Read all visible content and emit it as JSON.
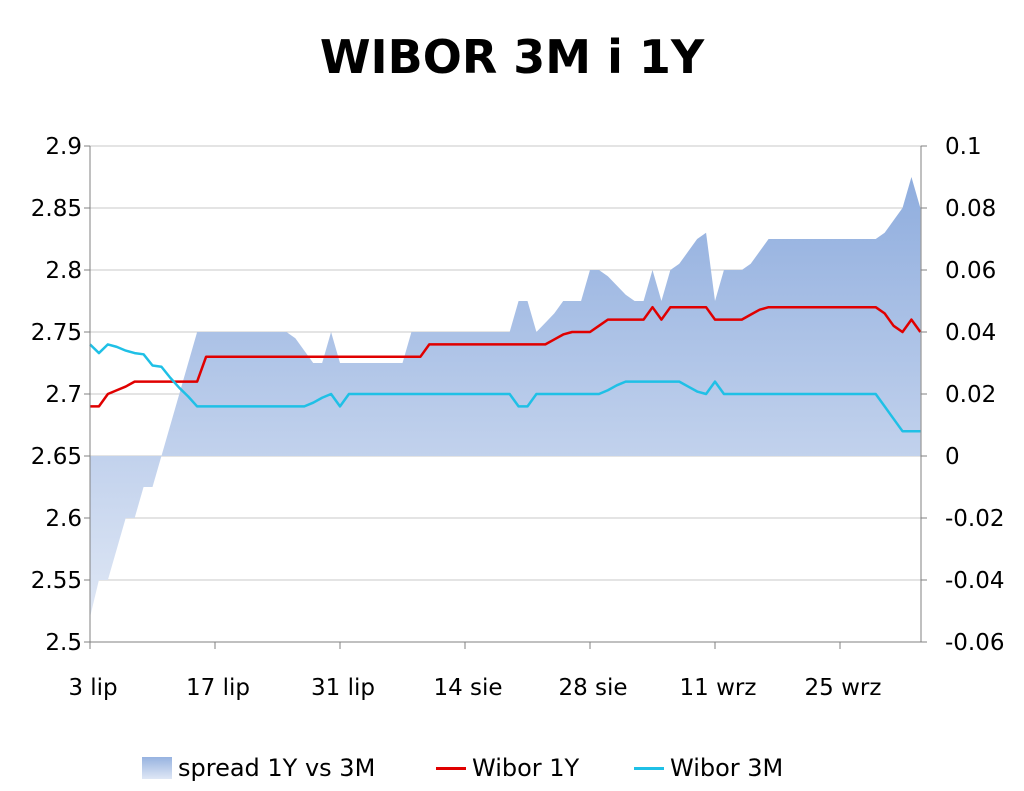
{
  "chart_data": {
    "type": "line",
    "title": "WIBOR 3M i 1Y",
    "x_tick_labels": [
      "3 lip",
      "17 lip",
      "31 lip",
      "14 sie",
      "28 sie",
      "11 wrz",
      "25 wrz"
    ],
    "y_left": {
      "ylim": [
        2.5,
        2.9
      ],
      "ticks": [
        "2.9",
        "2.85",
        "2.8",
        "2.75",
        "2.7",
        "2.65",
        "2.6",
        "2.55",
        "2.5"
      ]
    },
    "y_right": {
      "ylim": [
        -0.06,
        0.1
      ],
      "ticks": [
        "0.1",
        "0.08",
        "0.06",
        "0.04",
        "0.02",
        "0",
        "-0.02",
        "-0.04",
        "-0.06"
      ]
    },
    "grid": true,
    "legend_position": "bottom",
    "x_days": [
      0,
      1,
      2,
      3,
      4,
      5,
      6,
      7,
      8,
      9,
      10,
      11,
      12,
      13,
      14,
      15,
      16,
      17,
      18,
      19,
      20,
      21,
      22,
      23,
      24,
      25,
      26,
      27,
      28,
      29,
      30,
      31,
      32,
      33,
      34,
      35,
      36,
      37,
      38,
      39,
      40,
      41,
      42,
      43,
      44,
      45,
      46,
      47,
      48,
      49,
      50,
      51,
      52,
      53,
      54,
      55,
      56,
      57,
      58,
      59,
      60,
      61,
      62,
      63,
      64,
      65,
      66,
      67,
      68,
      69,
      70,
      71,
      72,
      73,
      74,
      75,
      76,
      77,
      78,
      79,
      80,
      81,
      82,
      83,
      84,
      85,
      86,
      87,
      88,
      89,
      90,
      91,
      92,
      93
    ],
    "series": [
      {
        "name": "spread 1Y vs 3M",
        "type": "area",
        "axis": "right",
        "color": "#97b3e0",
        "values": [
          -0.052,
          -0.04,
          -0.04,
          -0.03,
          -0.02,
          -0.02,
          -0.01,
          -0.01,
          0.0,
          0.01,
          0.02,
          0.03,
          0.04,
          0.04,
          0.04,
          0.04,
          0.04,
          0.04,
          0.04,
          0.04,
          0.04,
          0.04,
          0.04,
          0.038,
          0.034,
          0.03,
          0.03,
          0.04,
          0.03,
          0.03,
          0.03,
          0.03,
          0.03,
          0.03,
          0.03,
          0.03,
          0.04,
          0.04,
          0.04,
          0.04,
          0.04,
          0.04,
          0.04,
          0.04,
          0.04,
          0.04,
          0.04,
          0.04,
          0.05,
          0.05,
          0.04,
          0.043,
          0.046,
          0.05,
          0.05,
          0.05,
          0.06,
          0.06,
          0.058,
          0.055,
          0.052,
          0.05,
          0.05,
          0.06,
          0.05,
          0.06,
          0.062,
          0.066,
          0.07,
          0.072,
          0.05,
          0.06,
          0.06,
          0.06,
          0.062,
          0.066,
          0.07,
          0.07,
          0.07,
          0.07,
          0.07,
          0.07,
          0.07,
          0.07,
          0.07,
          0.07,
          0.07,
          0.07,
          0.07,
          0.072,
          0.076,
          0.08,
          0.09,
          0.08
        ]
      },
      {
        "name": "Wibor 1Y",
        "type": "line",
        "axis": "left",
        "color": "#e00000",
        "values": [
          2.69,
          2.69,
          2.7,
          2.703,
          2.706,
          2.71,
          2.71,
          2.71,
          2.71,
          2.71,
          2.71,
          2.71,
          2.71,
          2.73,
          2.73,
          2.73,
          2.73,
          2.73,
          2.73,
          2.73,
          2.73,
          2.73,
          2.73,
          2.73,
          2.73,
          2.73,
          2.73,
          2.73,
          2.73,
          2.73,
          2.73,
          2.73,
          2.73,
          2.73,
          2.73,
          2.73,
          2.73,
          2.73,
          2.74,
          2.74,
          2.74,
          2.74,
          2.74,
          2.74,
          2.74,
          2.74,
          2.74,
          2.74,
          2.74,
          2.74,
          2.74,
          2.74,
          2.744,
          2.748,
          2.75,
          2.75,
          2.75,
          2.755,
          2.76,
          2.76,
          2.76,
          2.76,
          2.76,
          2.77,
          2.76,
          2.77,
          2.77,
          2.77,
          2.77,
          2.77,
          2.76,
          2.76,
          2.76,
          2.76,
          2.764,
          2.768,
          2.77,
          2.77,
          2.77,
          2.77,
          2.77,
          2.77,
          2.77,
          2.77,
          2.77,
          2.77,
          2.77,
          2.77,
          2.77,
          2.765,
          2.755,
          2.75,
          2.76,
          2.75
        ]
      },
      {
        "name": "Wibor 3M",
        "type": "line",
        "axis": "left",
        "color": "#1fc0e6",
        "values": [
          2.74,
          2.733,
          2.74,
          2.738,
          2.735,
          2.733,
          2.732,
          2.723,
          2.722,
          2.713,
          2.705,
          2.698,
          2.69,
          2.69,
          2.69,
          2.69,
          2.69,
          2.69,
          2.69,
          2.69,
          2.69,
          2.69,
          2.69,
          2.69,
          2.69,
          2.693,
          2.697,
          2.7,
          2.69,
          2.7,
          2.7,
          2.7,
          2.7,
          2.7,
          2.7,
          2.7,
          2.7,
          2.7,
          2.7,
          2.7,
          2.7,
          2.7,
          2.7,
          2.7,
          2.7,
          2.7,
          2.7,
          2.7,
          2.69,
          2.69,
          2.7,
          2.7,
          2.7,
          2.7,
          2.7,
          2.7,
          2.7,
          2.7,
          2.703,
          2.707,
          2.71,
          2.71,
          2.71,
          2.71,
          2.71,
          2.71,
          2.71,
          2.706,
          2.702,
          2.7,
          2.71,
          2.7,
          2.7,
          2.7,
          2.7,
          2.7,
          2.7,
          2.7,
          2.7,
          2.7,
          2.7,
          2.7,
          2.7,
          2.7,
          2.7,
          2.7,
          2.7,
          2.7,
          2.7,
          2.69,
          2.68,
          2.67,
          2.67,
          2.67
        ]
      }
    ]
  },
  "legend": {
    "items": [
      "spread 1Y vs 3M",
      "Wibor 1Y",
      "Wibor 3M"
    ]
  }
}
